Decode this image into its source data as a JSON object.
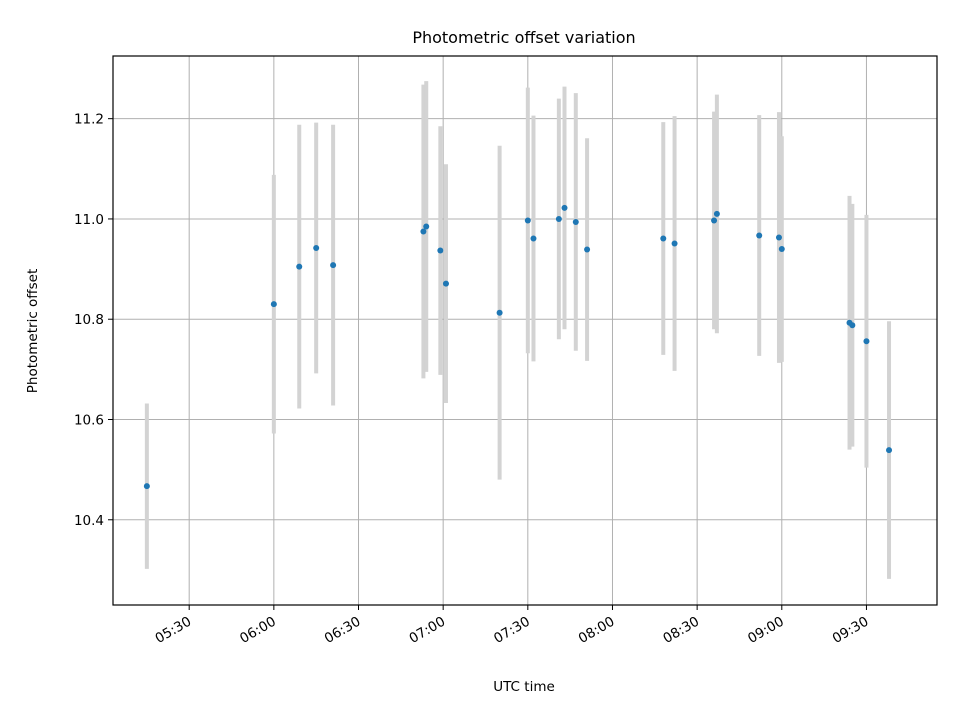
{
  "chart_data": {
    "type": "scatter",
    "title": "Photometric offset variation",
    "xlabel": "UTC time",
    "ylabel": "Photometric offset",
    "x_tick_labels": [
      "05:30",
      "06:00",
      "06:30",
      "07:00",
      "07:30",
      "08:00",
      "08:30",
      "09:00",
      "09:30"
    ],
    "x_tick_times": [
      "05:30",
      "06:00",
      "06:30",
      "07:00",
      "07:30",
      "08:00",
      "08:30",
      "09:00",
      "09:30"
    ],
    "xlim": [
      "05:03",
      "09:55"
    ],
    "y_ticks": [
      10.4,
      10.6,
      10.8,
      11.0,
      11.2
    ],
    "y_tick_labels": [
      "10.4",
      "10.6",
      "10.8",
      "11.0",
      "11.2"
    ],
    "ylim": [
      10.23,
      11.325
    ],
    "grid": true,
    "colors": {
      "point": "#1f77b4",
      "errorbar": "#d3d3d3",
      "grid": "#b0b0b0",
      "axis": "#000000"
    },
    "series": [
      {
        "points": [
          {
            "time": "05:15",
            "y": 10.467,
            "err": 0.165
          },
          {
            "time": "06:00",
            "y": 10.83,
            "err": 0.258
          },
          {
            "time": "06:09",
            "y": 10.905,
            "err": 0.283
          },
          {
            "time": "06:15",
            "y": 10.942,
            "err": 0.25
          },
          {
            "time": "06:21",
            "y": 10.908,
            "err": 0.28
          },
          {
            "time": "06:53",
            "y": 10.975,
            "err": 0.293
          },
          {
            "time": "06:54",
            "y": 10.985,
            "err": 0.29
          },
          {
            "time": "06:59",
            "y": 10.937,
            "err": 0.248
          },
          {
            "time": "07:01",
            "y": 10.871,
            "err": 0.238
          },
          {
            "time": "07:20",
            "y": 10.813,
            "err": 0.333
          },
          {
            "time": "07:30",
            "y": 10.997,
            "err": 0.265
          },
          {
            "time": "07:32",
            "y": 10.961,
            "err": 0.245
          },
          {
            "time": "07:41",
            "y": 11.0,
            "err": 0.24
          },
          {
            "time": "07:43",
            "y": 11.022,
            "err": 0.242
          },
          {
            "time": "07:47",
            "y": 10.994,
            "err": 0.257
          },
          {
            "time": "07:51",
            "y": 10.939,
            "err": 0.222
          },
          {
            "time": "08:18",
            "y": 10.961,
            "err": 0.232
          },
          {
            "time": "08:22",
            "y": 10.951,
            "err": 0.254
          },
          {
            "time": "08:36",
            "y": 10.997,
            "err": 0.217
          },
          {
            "time": "08:37",
            "y": 11.01,
            "err": 0.238
          },
          {
            "time": "08:52",
            "y": 10.967,
            "err": 0.24
          },
          {
            "time": "08:59",
            "y": 10.963,
            "err": 0.25
          },
          {
            "time": "09:00",
            "y": 10.94,
            "err": 0.225
          },
          {
            "time": "09:24",
            "y": 10.793,
            "err": 0.253
          },
          {
            "time": "09:25",
            "y": 10.788,
            "err": 0.242
          },
          {
            "time": "09:30",
            "y": 10.756,
            "err": 0.252
          },
          {
            "time": "09:38",
            "y": 10.539,
            "err": 0.257
          }
        ]
      }
    ]
  }
}
